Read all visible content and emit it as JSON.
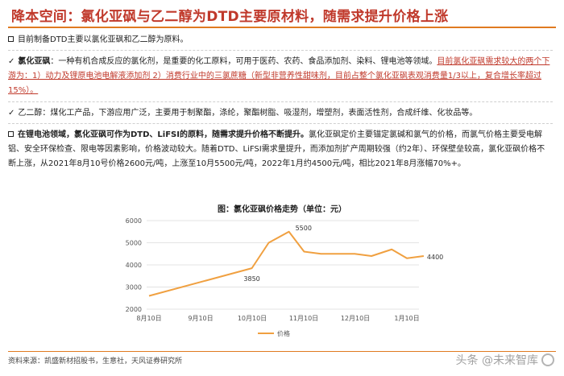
{
  "header": {
    "title": "降本空间：氯化亚砜与乙二醇为DTD主要原材料，随需求提升价格上涨"
  },
  "paragraphs": {
    "p1": "目前制备DTD主要以氯化亚砜和乙二醇为原料。",
    "p2_label": "氯化亚砜",
    "p2_colon": "：",
    "p2_text": "一种有机合成反应的氯化剂，是重要的化工原料，可用于医药、农药、食品添加剂、染料、锂电池等领域。",
    "p2_red": "目前氯化亚砜需求较大的两个下游为：1）动力及锂原电池电解液添加剂 2）消费行业中的三氯蔗糖（新型非营养性甜味剂，目前占整个氯化亚砜表观消费量1/3以上，复合增长率超过15%）。",
    "p3": "乙二醇：煤化工产品，下游应用广泛，主要用于制聚酯，涤纶，聚酯树脂、吸湿剂，增塑剂，表面活性剂，合成纤维、化妆品等。",
    "p4_bold": "在锂电池领域，氯化亚砜可作为DTD、LiFSI的原料，随需求提升价格不断提升。",
    "p4_text": "氯化亚砜定价主要锚定氯碱和氯气的价格，而氯气价格主要受电解铝、安全环保检查、限电等因素影响，价格波动较大。随着DTD、LiFSI需求量提升，而添加剂扩产周期较强（约2年）、环保壁垒较高，氯化亚砜价格不断上涨，从2021年8月10号价格2600元/吨，上涨至10月5500元/吨，2022年1月约4500元/吨，相比2021年8月涨幅70%+。"
  },
  "chart_title": "图：氯化亚砜价格走势（单位：元）",
  "chart_data": {
    "type": "line",
    "title": "图：氯化亚砜价格走势（单位：元）",
    "x_ticks": [
      "8月10日",
      "9月10日",
      "10月10日",
      "11月10日",
      "12月10日",
      "1月10日"
    ],
    "x": [
      "2021-08-10",
      "2021-10-10",
      "2021-10-20",
      "2021-11-01",
      "2021-11-10",
      "2021-11-20",
      "2021-12-01",
      "2021-12-10",
      "2021-12-20",
      "2022-01-01",
      "2022-01-10",
      "2022-01-20"
    ],
    "series": [
      {
        "name": "价格",
        "color": "#f0a040",
        "values": [
          2600,
          3850,
          5000,
          5500,
          4600,
          4500,
          4500,
          4500,
          4400,
          4700,
          4300,
          4400
        ]
      }
    ],
    "annotations": [
      {
        "x": "2021-10-10",
        "label": "3850"
      },
      {
        "x": "2021-11-01",
        "label": "5500"
      },
      {
        "x": "2022-01-20",
        "label": "4400"
      }
    ],
    "y_ticks": [
      2000,
      3000,
      4000,
      5000,
      6000
    ],
    "ylim": [
      2000,
      6000
    ],
    "grid": true,
    "legend": "bottom-center"
  },
  "footer": {
    "source": "资料来源：凯盛新材招股书，生意社，天风证券研究所",
    "watermark": "头条 @未来智库"
  }
}
